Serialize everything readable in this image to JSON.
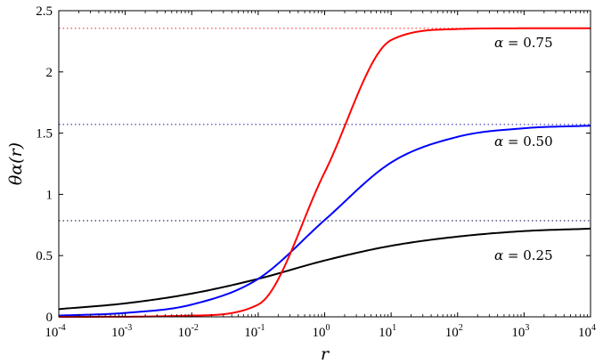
{
  "chart_data": {
    "type": "line",
    "title": "",
    "xlabel": "r",
    "ylabel": "θα(r)",
    "xscale": "log",
    "xlim": [
      0.0001,
      10000
    ],
    "ylim": [
      0,
      2.5
    ],
    "grid": false,
    "legend": "none",
    "x_ticks": [
      {
        "base": "10",
        "exp": "-4",
        "value": 0.0001
      },
      {
        "base": "10",
        "exp": "-3",
        "value": 0.001
      },
      {
        "base": "10",
        "exp": "-2",
        "value": 0.01
      },
      {
        "base": "10",
        "exp": "-1",
        "value": 0.1
      },
      {
        "base": "10",
        "exp": "0",
        "value": 1
      },
      {
        "base": "10",
        "exp": "1",
        "value": 10
      },
      {
        "base": "10",
        "exp": "2",
        "value": 100
      },
      {
        "base": "10",
        "exp": "3",
        "value": 1000
      },
      {
        "base": "10",
        "exp": "4",
        "value": 10000
      }
    ],
    "y_ticks": [
      {
        "label": "0",
        "value": 0
      },
      {
        "label": "0.5",
        "value": 0.5
      },
      {
        "label": "1",
        "value": 1
      },
      {
        "label": "1.5",
        "value": 1.5
      },
      {
        "label": "2",
        "value": 2
      },
      {
        "label": "2.5",
        "value": 2.5
      }
    ],
    "series": [
      {
        "color": "#000000",
        "alpha": 0.25,
        "asymptote": 0.785,
        "asymptote_color": "#333366",
        "points": [
          [
            0.0001,
            0.063
          ],
          [
            0.001,
            0.11
          ],
          [
            0.01,
            0.19
          ],
          [
            0.1,
            0.31
          ],
          [
            1,
            0.46
          ],
          [
            10,
            0.58
          ],
          [
            100,
            0.655
          ],
          [
            1000,
            0.7
          ],
          [
            10000,
            0.72
          ]
        ]
      },
      {
        "color": "#0000ff",
        "alpha": 0.5,
        "asymptote": 1.571,
        "asymptote_color": "#3333aa",
        "points": [
          [
            0.0001,
            0.01
          ],
          [
            0.001,
            0.032
          ],
          [
            0.01,
            0.1
          ],
          [
            0.1,
            0.31
          ],
          [
            1,
            0.79
          ],
          [
            10,
            1.26
          ],
          [
            100,
            1.47
          ],
          [
            1000,
            1.54
          ],
          [
            10000,
            1.561
          ]
        ]
      },
      {
        "color": "#ff0000",
        "alpha": 0.75,
        "asymptote": 2.356,
        "asymptote_color": "#ff3333",
        "points": [
          [
            0.0001,
            0.0
          ],
          [
            0.001,
            0.001
          ],
          [
            0.01,
            0.01
          ],
          [
            0.1,
            0.1
          ],
          [
            1,
            1.18
          ],
          [
            10,
            2.26
          ],
          [
            100,
            2.35
          ],
          [
            1000,
            2.356
          ],
          [
            10000,
            2.356
          ]
        ]
      }
    ],
    "annotations": [
      {
        "lhs": "α",
        "eq": " = ",
        "value": "0.75",
        "y": 2.24
      },
      {
        "lhs": "α",
        "eq": " = ",
        "value": "0.50",
        "y": 1.43
      },
      {
        "lhs": "α",
        "eq": " = ",
        "value": "0.25",
        "y": 0.5
      }
    ]
  }
}
